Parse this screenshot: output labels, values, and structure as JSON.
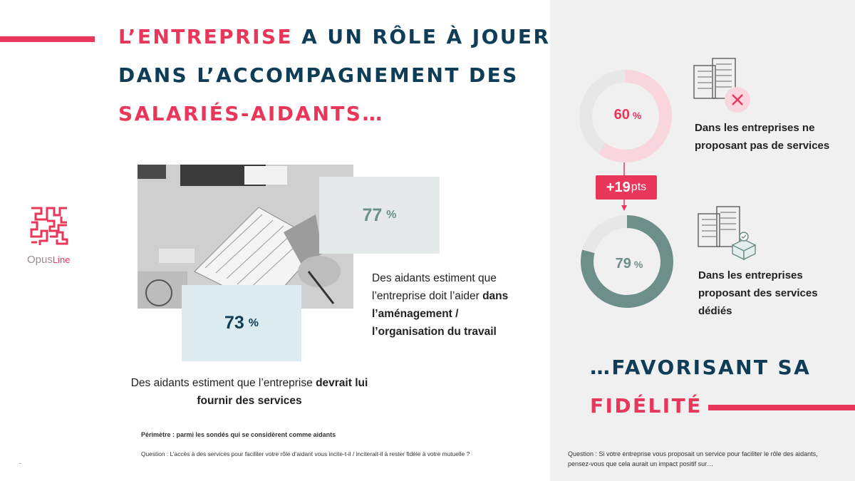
{
  "title": {
    "line1_accent": "L’ENTREPRISE",
    "line1_rest": "A UN RÔLE À JOUER",
    "line2": "DANS L’ACCOMPAGNEMENT DES",
    "line3": "SALARIÉS-AIDANTS…"
  },
  "logo": {
    "name_part1": "Opus",
    "name_part2": "Line"
  },
  "left_stats": {
    "stat_workplace": {
      "value": "77",
      "unit": "%"
    },
    "stat_services": {
      "value": "73",
      "unit": "%"
    },
    "desc_workplace": {
      "prefix": "Des aidants estiment que l’entreprise doit l’aider ",
      "bold": "dans l’aménagement / l’organisation du travail"
    },
    "desc_services": {
      "prefix": "Des aidants estiment que l’entreprise ",
      "bold": "devrait lui fournir des services"
    }
  },
  "footnotes": {
    "perimetre": "Périmètre : parmi les sondés qui se considèrent comme aidants",
    "question_left": "Question : L’accès à des services pour faciliter votre rôle d’aidant vous incite-t-il / inciterait-il à rester fidèle à votre mutuelle ?",
    "question_right": "Question : Si votre entreprise vous proposait un service pour faciliter le rôle des aidants, pensez-vous que cela aurait un impact positif sur…"
  },
  "comparison": {
    "without_services": {
      "value": 60,
      "unit": "%",
      "label": "Dans les entreprises ne proposant pas de services"
    },
    "with_services": {
      "value": 79,
      "unit": "%",
      "label": "Dans les entreprises proposant des services dédiés"
    },
    "difference": {
      "value": "+19",
      "unit": "pts"
    }
  },
  "closing": {
    "line1": "…FAVORISANT SA",
    "line2": "FIDÉLITÉ"
  },
  "colors": {
    "accent": "#e8375a",
    "navy": "#0f3d57",
    "teal": "#6d8f89",
    "light_pink": "#f9d6dd",
    "track_gray": "#e7e7e7"
  }
}
